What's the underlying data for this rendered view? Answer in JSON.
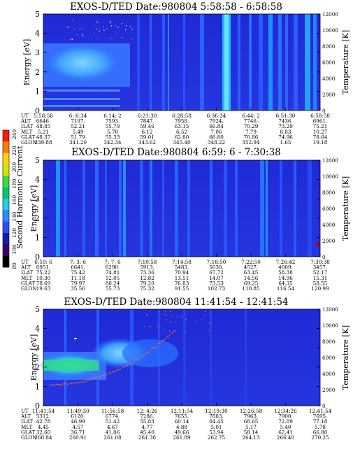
{
  "chart_data": [
    {
      "type": "heatmap",
      "title": "EXOS-D/TED   Date:980804   5:58:58 - 6:58:58",
      "ylabel": "Energy [eV]",
      "ylabel_right": "Temperature [K]",
      "ylim": [
        0,
        5
      ],
      "y_ticks": [
        "0",
        "1",
        "2",
        "3",
        "4",
        "5"
      ],
      "y2lim": [
        0,
        12000
      ],
      "y2_ticks": [
        "0",
        "2000",
        "4000",
        "6000",
        "8000",
        "10000",
        "12000"
      ],
      "ephemeris": [
        {
          "label": "UT",
          "values": [
            "5:58:58",
            "6: 6:34",
            "6:14: 2",
            "6:21:30",
            "6:28:58",
            "6:36:34",
            "6:44: 2",
            "6:51:30",
            "6:58:58"
          ]
        },
        {
          "label": "ALT",
          "values": [
            "6646.",
            "7197.",
            "7593.",
            "7847.",
            "7958.",
            "7924.",
            "7746.",
            "7436.",
            "6961."
          ]
        },
        {
          "label": "ILAT",
          "values": [
            "48.85",
            "52.21",
            "55.79",
            "59.46",
            "63.15",
            "66.84",
            "70.29",
            "73.29",
            "75.21"
          ]
        },
        {
          "label": "MLT",
          "values": [
            "5.21",
            "5.49",
            "5.78",
            "6.12",
            "6.52",
            "7.06",
            "7.79",
            "8.83",
            "10.27"
          ]
        },
        {
          "label": "GLAT",
          "values": [
            "48.37",
            "51.79",
            "55.33",
            "59.01",
            "62.80",
            "66.80",
            "70.86",
            "74.96",
            "78.64"
          ]
        },
        {
          "label": "GLON",
          "values": [
            "339.88",
            "341.20",
            "342.34",
            "343.62",
            "345.40",
            "348.22",
            "352.94",
            "1.65",
            "19.18"
          ]
        }
      ]
    },
    {
      "type": "heatmap",
      "title": "EXOS-D/TED   Date:980804   6:59: 6 - 7:30:38",
      "ylabel": "Energy [eV]",
      "ylabel_right": "Temperature [K]",
      "ylim": [
        0,
        5
      ],
      "y_ticks": [
        "0",
        "1",
        "2",
        "3",
        "4",
        "5"
      ],
      "y2lim": [
        0,
        12000
      ],
      "y2_ticks": [
        "0",
        "2000",
        "4000",
        "6000",
        "8000",
        "10000",
        "12000"
      ],
      "ephemeris": [
        {
          "label": "UT",
          "values": [
            "6:59: 6",
            "7: 3: 6",
            "7: 7: 6",
            "7:10:58",
            "7:14:58",
            "7:18:50",
            "7:22:50",
            "7:26:42",
            "7:30:38"
          ]
        },
        {
          "label": "ALT",
          "values": [
            "6951.",
            "6641.",
            "6290.",
            "5913.",
            "5483.",
            "5030.",
            "4527.",
            "4009.",
            "3457."
          ]
        },
        {
          "label": "ILAT",
          "values": [
            "75.22",
            "75.42",
            "74.81",
            "73.36",
            "70.94",
            "67.72",
            "63.45",
            "58.38",
            "52.17"
          ]
        },
        {
          "label": "MLT",
          "values": [
            "10.30",
            "11.18",
            "12.05",
            "12.82",
            "13.51",
            "14.07",
            "14.56",
            "14.96",
            "15.31"
          ]
        },
        {
          "label": "GLAT",
          "values": [
            "78.69",
            "79.97",
            "80.24",
            "79.20",
            "76.83",
            "73.53",
            "69.25",
            "64.35",
            "58.55"
          ]
        },
        {
          "label": "GLON",
          "values": [
            "19.63",
            "35.56",
            "55.73",
            "75.32",
            "91.55",
            "102.73",
            "110.85",
            "116.54",
            "120.99"
          ]
        }
      ]
    },
    {
      "type": "heatmap",
      "title": "EXOS-D/TED   Date:980804   11:41:54 - 12:41:54",
      "ylabel": "Energy [eV]",
      "ylabel_right": "Temperature [K]",
      "ylim": [
        0,
        5
      ],
      "y_ticks": [
        "0",
        "1",
        "2",
        "3",
        "4",
        "5"
      ],
      "y2lim": [
        0,
        12000
      ],
      "y2_ticks": [
        "0",
        "2000",
        "4000",
        "6000",
        "8000",
        "10000",
        "12000"
      ],
      "ephemeris": [
        {
          "label": "UT",
          "values": [
            "11:41:54",
            "11:49:30",
            "11:56:58",
            "12: 4:26",
            "12:11:54",
            "12:19:30",
            "12:26:58",
            "12:34:26",
            "12:41:54"
          ]
        },
        {
          "label": "ALT",
          "values": [
            "5312.",
            "6120.",
            "6774.",
            "7286.",
            "7655.",
            "7883.",
            "7963.",
            "7900.",
            "7695."
          ]
        },
        {
          "label": "ILAT",
          "values": [
            "42.78",
            "46.99",
            "51.42",
            "55.83",
            "60.14",
            "64.45",
            "68.65",
            "72.89",
            "77.18"
          ]
        },
        {
          "label": "MLT",
          "values": [
            "4.45",
            "4.57",
            "4.67",
            "4.77",
            "4.88",
            "5.01",
            "5.17",
            "5.40",
            "5.78"
          ]
        },
        {
          "label": "GLAT",
          "values": [
            "32.60",
            "36.71",
            "41.06",
            "45.40",
            "49.66",
            "53.94",
            "58.14",
            "62.41",
            "66.80"
          ]
        },
        {
          "label": "GLON",
          "values": [
            "260.84",
            "260.91",
            "261.08",
            "261.38",
            "261.89",
            "262.75",
            "264.13",
            "266.40",
            "270.25"
          ]
        }
      ]
    }
  ],
  "colorbar": {
    "label": "Second Harmonic Current",
    "ticks": [
      "80",
      "100",
      "120",
      "140",
      "160",
      "180",
      "200",
      "220",
      "240"
    ],
    "colors": [
      "#000000",
      "#3c0060",
      "#1a1ab0",
      "#2a50ff",
      "#2a8cff",
      "#19d2e6",
      "#00c870",
      "#3cdc3c",
      "#d0e800",
      "#ffd400",
      "#ff7a00",
      "#ff1a00"
    ]
  }
}
